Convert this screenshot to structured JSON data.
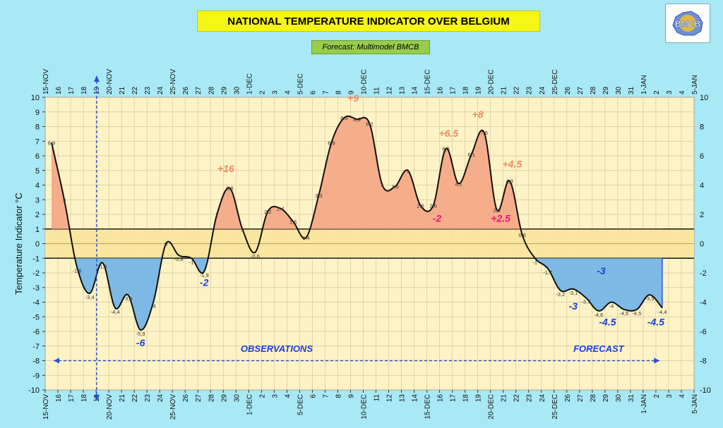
{
  "logo": {
    "text": "BMCB"
  },
  "chart_data": {
    "type": "line",
    "title": "NATIONAL TEMPERATURE INDICATOR OVER  BELGIUM",
    "subtitle": "Forecast:  Multimodel BMCB",
    "ylabel": "Temperature Indicator   °C",
    "ylim": [
      -10,
      10
    ],
    "y2_ticks": [
      "10",
      "8",
      "6",
      "4",
      "2",
      "0",
      "-2",
      "-4",
      "-6",
      "-8",
      "-10"
    ],
    "x_tick_labels": [
      "15-NOV",
      "16",
      "17",
      "18",
      "19",
      "20-NOV",
      "21",
      "22",
      "23",
      "24",
      "25-NOV",
      "26",
      "27",
      "28",
      "29",
      "30",
      "1-DEC",
      "2",
      "3",
      "4",
      "5-DEC",
      "6",
      "7",
      "8",
      "9",
      "10-DEC",
      "11",
      "12",
      "13",
      "14",
      "15-DEC",
      "16",
      "17",
      "18",
      "19",
      "20-DEC",
      "21",
      "22",
      "23",
      "24",
      "25-DEC",
      "26",
      "27",
      "28",
      "29",
      "30",
      "31",
      "1-JAN",
      "2",
      "3",
      "4",
      "5-JAN"
    ],
    "x_top_labels": [
      "15-NOV",
      "16",
      "17",
      "18",
      "19",
      "20-NOV",
      "21",
      "22",
      "23",
      "24",
      "25-NOV",
      "26",
      "27",
      "28",
      "29",
      "30",
      "1-DEC",
      "2",
      "3",
      "4",
      "5-DEC",
      "6",
      "7",
      "8",
      "9",
      "10-DEC",
      "11",
      "12",
      "13",
      "14",
      "15-DEC",
      "16",
      "17",
      "18",
      "19",
      "20-DEC",
      "21",
      "22",
      "23",
      "24",
      "25-DEC",
      "26",
      "27",
      "28",
      "29",
      "30",
      "31",
      "1-JAN",
      "2",
      "3",
      "4",
      "5-JAN"
    ],
    "normal_band": [
      -1,
      1
    ],
    "series": [
      {
        "x": [
          "15-NOV",
          "16",
          "17",
          "18",
          "19",
          "20-NOV",
          "21",
          "22",
          "23",
          "24",
          "25-NOV",
          "26",
          "27",
          "28",
          "29",
          "30",
          "1-DEC",
          "2",
          "3",
          "4",
          "5-DEC",
          "6",
          "7",
          "8",
          "9",
          "10-DEC",
          "11",
          "12",
          "13",
          "14",
          "15-DEC",
          "16",
          "17",
          "18",
          "19",
          "20-DEC",
          "21",
          "22",
          "23",
          "24",
          "25-DEC",
          "26",
          "27",
          "28",
          "29",
          "30",
          "31",
          "1-JAN",
          "2"
        ],
        "values": [
          6.9,
          3,
          -1.6,
          -3.4,
          -1.3,
          -4.4,
          -3.5,
          -5.9,
          -4,
          0,
          -0.8,
          -1,
          -1.9,
          2,
          3.8,
          1,
          -0.6,
          2.2,
          2.4,
          1.5,
          0.4,
          3.3,
          6.9,
          8.6,
          8.5,
          8.2,
          4,
          3.9,
          5,
          2.6,
          2.6,
          6.5,
          4.1,
          6.1,
          7.6,
          2.3,
          4.3,
          0.6,
          -1,
          -1.7,
          -3.2,
          -3.1,
          -3.7,
          -4.6,
          -4,
          -4.5,
          -4.5,
          -3.5,
          -4.4
        ]
      }
    ],
    "point_labels": [
      "6,9",
      "3",
      "-1,6",
      "-3,4",
      "-1,3",
      "-4,4",
      "-3,5",
      "-5,9",
      "-4",
      "0",
      "-0,8",
      "-1",
      "-1,9",
      "2",
      "3,8",
      "1",
      "-0,6",
      "2,2",
      "2,4",
      "1,5",
      "0,4",
      "3,3",
      "6,9",
      "8,6",
      "8,5",
      "8,2",
      "4",
      "3,9",
      "5",
      "2,6",
      "2,6",
      "6,5",
      "4,1",
      "6,1",
      "7,6",
      "2,3",
      "4,3",
      "0,6",
      "-1",
      "-1,7",
      "-3,2",
      "-3,1",
      "-3,7",
      "-4,6",
      "-4",
      "-4,5",
      "-4,5",
      "-3,5",
      "-4,4"
    ],
    "annotations": [
      {
        "text": "-6",
        "x": 7.5,
        "y": -7.0,
        "color": "#1a3fd6"
      },
      {
        "text": "-2",
        "x": 12.5,
        "y": -2.9,
        "color": "#1a3fd6"
      },
      {
        "text": "+16",
        "x": 14.2,
        "y": 4.9,
        "color": "#ef8a62"
      },
      {
        "text": "+9",
        "x": 24.2,
        "y": 9.7,
        "color": "#ef8a62"
      },
      {
        "text": "+6.5",
        "x": 31.7,
        "y": 7.3,
        "color": "#ef8a62"
      },
      {
        "text": "-2",
        "x": 30.8,
        "y": 1.5,
        "color": "#e8157a"
      },
      {
        "text": "+8",
        "x": 34.0,
        "y": 8.6,
        "color": "#ef8a62"
      },
      {
        "text": "+4.5",
        "x": 36.7,
        "y": 5.2,
        "color": "#ef8a62"
      },
      {
        "text": "+2.5",
        "x": 35.8,
        "y": 1.5,
        "color": "#e8157a"
      },
      {
        "text": "-3",
        "x": 43.7,
        "y": -2.1,
        "color": "#1a3fd6"
      },
      {
        "text": "-3",
        "x": 41.5,
        "y": -4.5,
        "color": "#1a3fd6"
      },
      {
        "text": "-4.5",
        "x": 44.2,
        "y": -5.6,
        "color": "#1a3fd6"
      },
      {
        "text": "-4.5",
        "x": 48.0,
        "y": -5.6,
        "color": "#1a3fd6"
      }
    ],
    "observations_label": "OBSERVATIONS",
    "forecast_label": "FORECAST",
    "divider_x": "19",
    "colors": {
      "plot_bg": "#fdf3c6",
      "band": "#fbe49a",
      "above": "#f6ad8a",
      "below": "#7db9e5",
      "line": "#111111",
      "blue_text": "#1a3fd6",
      "grid": "#d9c79a"
    }
  }
}
